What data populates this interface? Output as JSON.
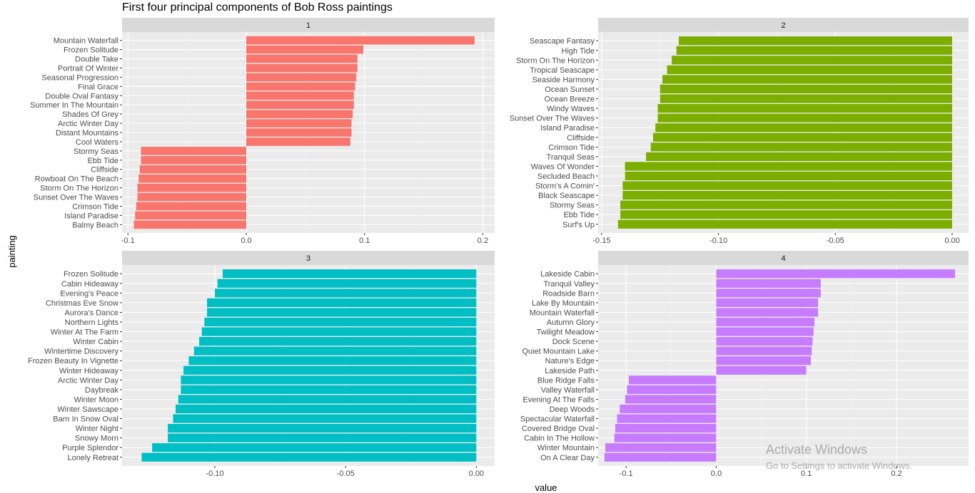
{
  "chart_data": {
    "type": "bar",
    "orientation": "horizontal",
    "title": "First four principal components of Bob Ross paintings",
    "xlabel": "value",
    "ylabel": "painting",
    "grid": true,
    "panels": [
      {
        "strip": "1",
        "color": "#F8766D",
        "xlim": [
          -0.105,
          0.21
        ],
        "xticks": [
          -0.1,
          0.0,
          0.1,
          0.2
        ],
        "xtick_labels": [
          "-0.1",
          "0.0",
          "0.1",
          "0.2"
        ],
        "categories": [
          "Mountain Waterfall",
          "Frozen Solitude",
          "Double Take",
          "Portrait Of Winter",
          "Seasonal Progression",
          "Final Grace",
          "Double Oval Fantasy",
          "Summer In The Mountain",
          "Shades Of Grey",
          "Arctic Winter Day",
          "Distant Mountains",
          "Cool Waters",
          "Stormy Seas",
          "Ebb Tide",
          "Cliffside",
          "Rowboat On The Beach",
          "Storm On The Horizon",
          "Sunset Over The Waves",
          "Crimson Tide",
          "Island Paradise",
          "Balmy Beach"
        ],
        "values": [
          0.193,
          0.099,
          0.094,
          0.094,
          0.093,
          0.092,
          0.091,
          0.091,
          0.09,
          0.089,
          0.089,
          0.088,
          -0.089,
          -0.089,
          -0.09,
          -0.091,
          -0.092,
          -0.092,
          -0.093,
          -0.094,
          -0.095
        ]
      },
      {
        "strip": "2",
        "color": "#7CAE00",
        "xlim": [
          -0.1515,
          0.007
        ],
        "xticks": [
          -0.15,
          -0.1,
          -0.05,
          0.0
        ],
        "xtick_labels": [
          "-0.15",
          "-0.10",
          "-0.05",
          "0.00"
        ],
        "categories": [
          "Seascape Fantasy",
          "High Tide",
          "Storm On The Horizon",
          "Tropical Seascape",
          "Seaside Harmony",
          "Ocean Sunset",
          "Ocean Breeze",
          "Windy Waves",
          "Sunset Over The Waves",
          "Island Paradise",
          "Cliffside",
          "Crimson Tide",
          "Tranquil Seas",
          "Waves Of Wonder",
          "Secluded Beach",
          "Storm's A Comin'",
          "Black Seascape",
          "Stormy Seas",
          "Ebb Tide",
          "Surf's Up"
        ],
        "values": [
          -0.117,
          -0.118,
          -0.12,
          -0.122,
          -0.124,
          -0.125,
          -0.125,
          -0.126,
          -0.126,
          -0.127,
          -0.128,
          -0.129,
          -0.131,
          -0.14,
          -0.14,
          -0.141,
          -0.141,
          -0.142,
          -0.142,
          -0.143
        ]
      },
      {
        "strip": "3",
        "color": "#00BFC4",
        "xlim": [
          -0.1355,
          0.007
        ],
        "xticks": [
          -0.1,
          -0.05,
          0.0
        ],
        "xtick_labels": [
          "-0.10",
          "-0.05",
          "0.00"
        ],
        "categories": [
          "Frozen Solitude",
          "Cabin Hideaway",
          "Evening's Peace",
          "Christmas Eve Snow",
          "Aurora's Dance",
          "Northern Lights",
          "Winter At The Farm",
          "Winter Cabin",
          "Wintertime Discovery",
          "Frozen Beauty In Vignette",
          "Winter Hideaway",
          "Arctic Winter Day",
          "Daybreak",
          "Winter Moon",
          "Winter Sawscape",
          "Barn In Snow Oval",
          "Winter Night",
          "Snowy Morn",
          "Purple Splendor",
          "Lonely Retreat"
        ],
        "values": [
          -0.097,
          -0.099,
          -0.1,
          -0.103,
          -0.103,
          -0.104,
          -0.105,
          -0.106,
          -0.108,
          -0.11,
          -0.112,
          -0.113,
          -0.113,
          -0.114,
          -0.115,
          -0.116,
          -0.118,
          -0.118,
          -0.124,
          -0.128
        ]
      },
      {
        "strip": "4",
        "color": "#C77CFF",
        "xlim": [
          -0.131,
          0.28
        ],
        "xticks": [
          -0.1,
          0.0,
          0.1,
          0.2
        ],
        "xtick_labels": [
          "-0.1",
          "0.0",
          "0.1",
          "0.2"
        ],
        "categories": [
          "Lakeside Cabin",
          "Tranquil Valley",
          "Roadside Barn",
          "Lake By Mountain",
          "Mountain Waterfall",
          "Autumn Glory",
          "Twilight Meadow",
          "Dock Scene",
          "Quiet Mountain Lake",
          "Nature's Edge",
          "Lakeside Path",
          "Blue Ridge Falls",
          "Valley Waterfall",
          "Evening At The Falls",
          "Deep Woods",
          "Spectacular Waterfall",
          "Covered Bridge Oval",
          "Cabin In The Hollow",
          "Winter Mountain",
          "On A Clear Day"
        ],
        "values": [
          0.265,
          0.116,
          0.116,
          0.113,
          0.113,
          0.109,
          0.108,
          0.107,
          0.106,
          0.105,
          0.1,
          -0.097,
          -0.099,
          -0.101,
          -0.107,
          -0.11,
          -0.112,
          -0.113,
          -0.123,
          -0.124
        ]
      }
    ]
  },
  "watermark": {
    "line1": "Activate Windows",
    "line2": "Go to Settings to activate Windows."
  }
}
